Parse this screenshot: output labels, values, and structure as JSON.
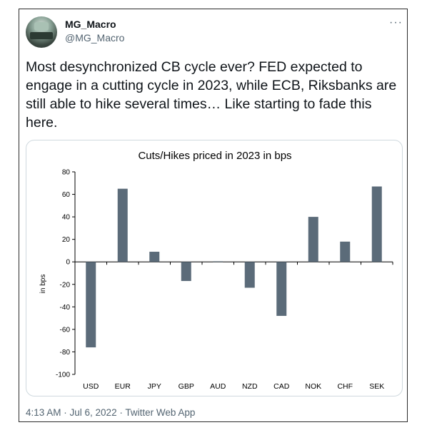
{
  "tweet": {
    "author_name": "MG_Macro",
    "author_handle": "@MG_Macro",
    "more_label": "···",
    "text": "Most desynchronized CB cycle ever? FED expected to engage in a cutting cycle in 2023, while ECB, Riksbanks are still able to hike several times… Like starting to fade this here.",
    "timestamp": "4:13 AM · Jul 6, 2022 · Twitter Web App"
  },
  "colors": {
    "bar": "#5b6b79",
    "axis": "#000000"
  },
  "chart_data": {
    "type": "bar",
    "title": "Cuts/Hikes priced in 2023 in bps",
    "xlabel": "",
    "ylabel": "in bps",
    "categories": [
      "USD",
      "EUR",
      "JPY",
      "GBP",
      "AUD",
      "NZD",
      "CAD",
      "NOK",
      "CHF",
      "SEK"
    ],
    "values": [
      -76,
      65,
      9,
      -17,
      0.5,
      -23,
      -48,
      40,
      18,
      67
    ],
    "ylim": [
      -100,
      80
    ],
    "yticks": [
      80,
      60,
      40,
      20,
      0,
      -20,
      -40,
      -60,
      -80,
      -100
    ],
    "grid": false,
    "legend": "none"
  }
}
